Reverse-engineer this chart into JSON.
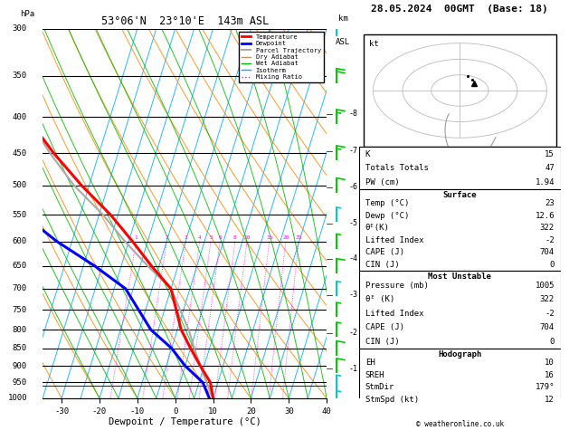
{
  "title_left": "53°06'N  23°10'E  143m ASL",
  "title_right": "28.05.2024  00GMT  (Base: 18)",
  "xlabel": "Dewpoint / Temperature (°C)",
  "pressure_ticks": [
    300,
    350,
    400,
    450,
    500,
    550,
    600,
    650,
    700,
    750,
    800,
    850,
    900,
    950,
    1000
  ],
  "temp_min": -35,
  "temp_max": 40,
  "isotherm_temps": [
    -40,
    -35,
    -30,
    -25,
    -20,
    -15,
    -10,
    -5,
    0,
    5,
    10,
    15,
    20,
    25,
    30,
    35,
    40,
    45
  ],
  "mixing_ratio_values": [
    1,
    2,
    3,
    4,
    5,
    6,
    8,
    10,
    15,
    20,
    25
  ],
  "altitude_ticks": [
    1,
    2,
    3,
    4,
    5,
    6,
    7,
    8
  ],
  "altitude_pressures": [
    908,
    808,
    714,
    635,
    566,
    503,
    447,
    396
  ],
  "lcl_pressure": 960,
  "sounding_temp": [
    10,
    8,
    4,
    0,
    -4,
    -10,
    -17,
    -24,
    -32,
    -42,
    -52,
    -62,
    -70,
    -78
  ],
  "sounding_dewp": [
    9,
    6,
    0,
    -5,
    -12,
    -22,
    -32,
    -44,
    -55,
    -63,
    -70,
    -76,
    -82,
    -88
  ],
  "sounding_pressures": [
    1000,
    950,
    900,
    850,
    800,
    700,
    650,
    600,
    550,
    500,
    450,
    400,
    350,
    300
  ],
  "parcel_temp": [
    10,
    7,
    4,
    1,
    -2,
    -10,
    -18,
    -26,
    -34,
    -44,
    -53,
    -62,
    -71,
    -79
  ],
  "parcel_pressures": [
    1000,
    950,
    900,
    850,
    800,
    700,
    650,
    600,
    550,
    500,
    450,
    400,
    350,
    300
  ],
  "stats": {
    "K": 15,
    "Totals_Totals": 47,
    "PW_cm": 1.94,
    "Surface_Temp": 23,
    "Surface_Dewp": 12.6,
    "Surface_theta_e": 322,
    "Surface_LI": -2,
    "Surface_CAPE": 704,
    "Surface_CIN": 0,
    "MU_Pressure": 1005,
    "MU_theta_e": 322,
    "MU_LI": -2,
    "MU_CAPE": 704,
    "MU_CIN": 0,
    "EH": 10,
    "SREH": 16,
    "StmDir": 179,
    "StmSpd_kt": 12
  },
  "isotherm_color": "#00aaff",
  "dryadiabat_color": "#ff8800",
  "wetadiabat_color": "#00bb00",
  "mixingratio_color": "#ff00ff",
  "temp_color": "#ff0000",
  "dewpoint_color": "#0000ff",
  "parcel_color": "#aaaaaa"
}
